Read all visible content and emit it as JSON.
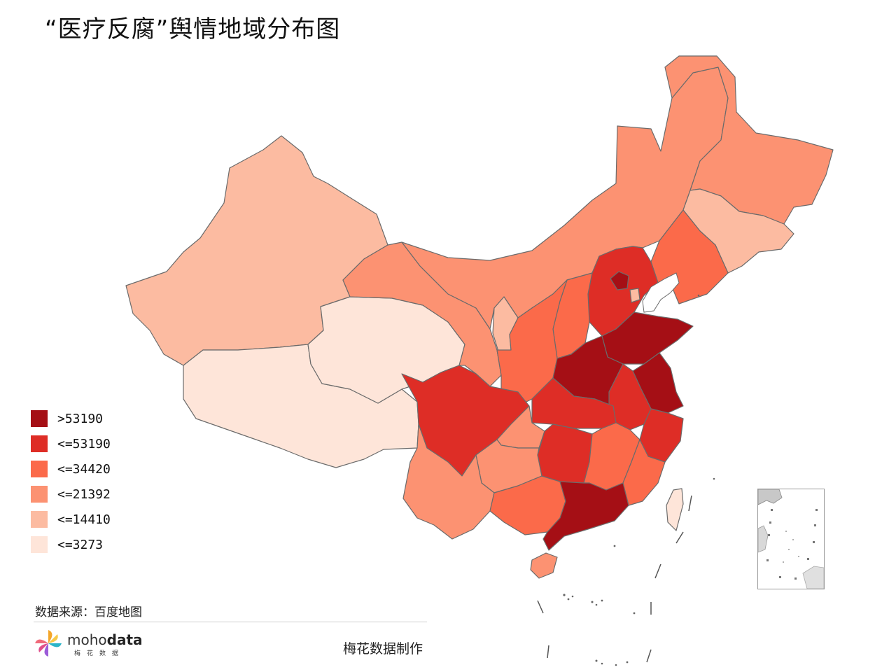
{
  "title": "“医疗反腐”舆情地域分布图",
  "legend": [
    {
      "label": ">53190",
      "color": "#a50f15"
    },
    {
      "label": "<=53190",
      "color": "#de2d26"
    },
    {
      "label": "<=34420",
      "color": "#fb6a4a"
    },
    {
      "label": "<=21392",
      "color": "#fc9272"
    },
    {
      "label": "<=14410",
      "color": "#fcbba1"
    },
    {
      "label": "<=3273",
      "color": "#fee5d9"
    }
  ],
  "source": "数据来源：百度地图",
  "logo": {
    "word_light": "moho",
    "word_bold": "data",
    "sub": "梅花数据"
  },
  "maker": "梅花数据制作"
}
